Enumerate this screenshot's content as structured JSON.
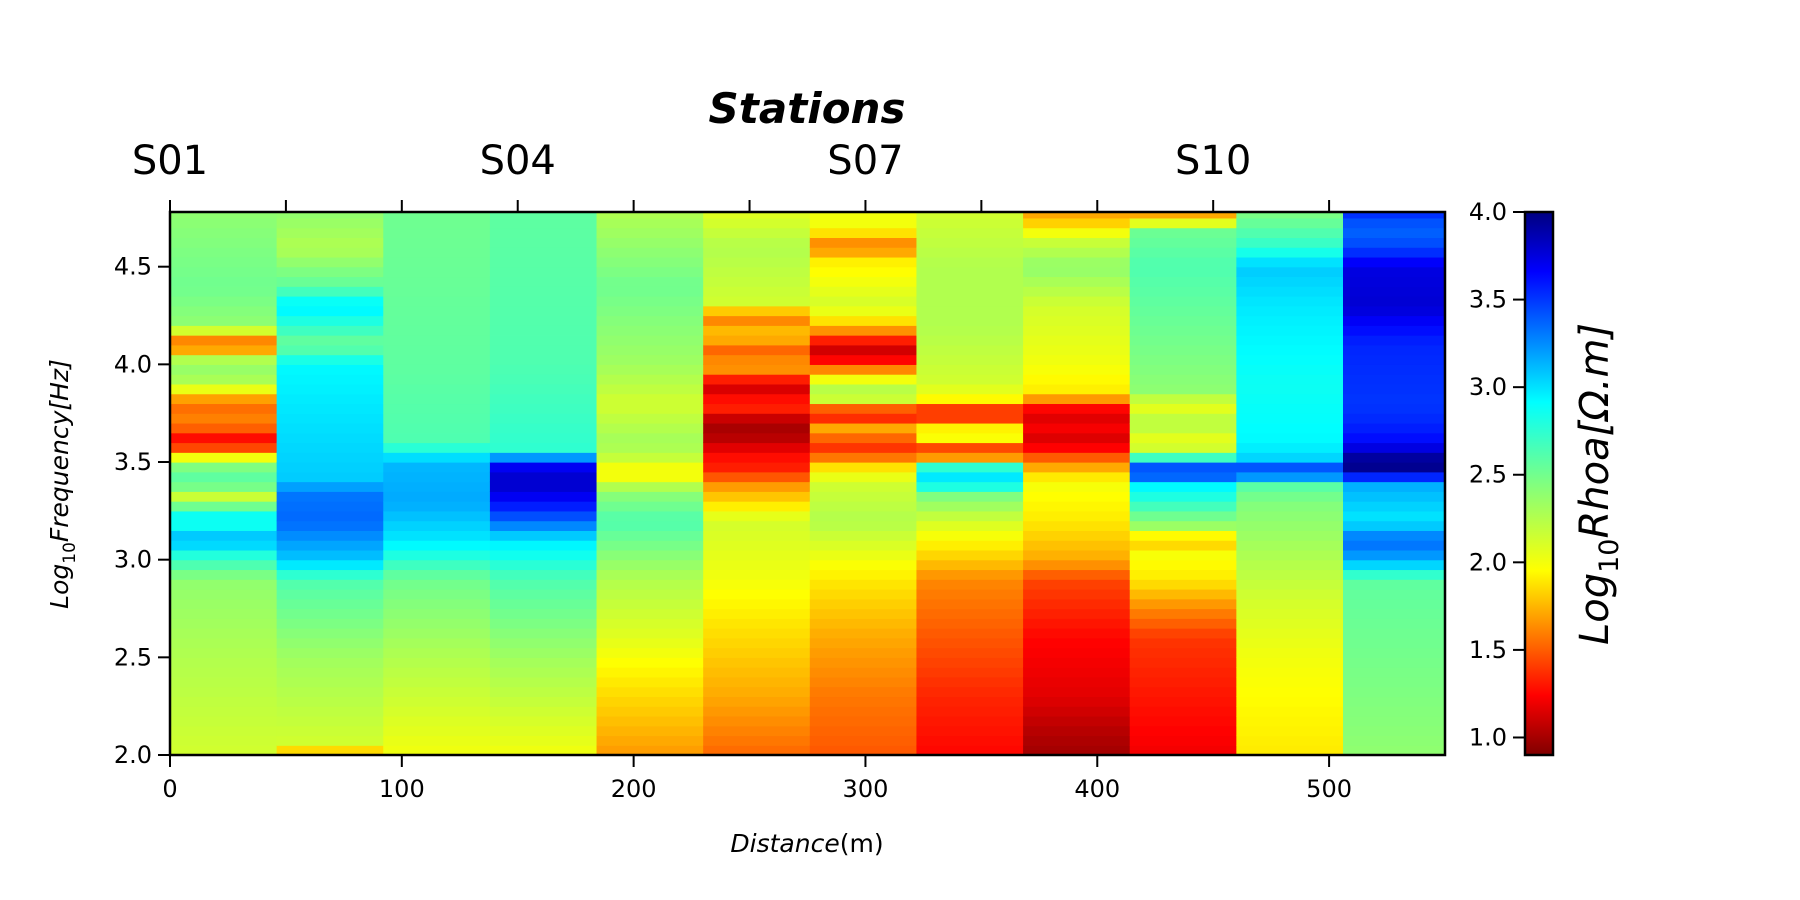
{
  "chart_data": {
    "type": "heatmap",
    "title": "Stations",
    "xlabel_base": "Distance",
    "xlabel_unit": "(m)",
    "ylabel_prefix": "Log",
    "ylabel_sub": "10",
    "ylabel_rest": "Frequency[Hz]",
    "colorbar_prefix": "Log",
    "colorbar_sub": "10",
    "colorbar_rest": "Rhoa[Ω.m]",
    "colormap": "jet",
    "color_range": [
      0.9,
      4.0
    ],
    "xlim": [
      0,
      550
    ],
    "ylim": [
      2.0,
      4.78
    ],
    "x_ticks": [
      0,
      100,
      200,
      300,
      400,
      500
    ],
    "y_ticks": [
      "2.0",
      "2.5",
      "3.0",
      "3.5",
      "4.0",
      "4.5"
    ],
    "colorbar_ticks": [
      "1.0",
      "1.5",
      "2.0",
      "2.5",
      "3.0",
      "3.5",
      "4.0"
    ],
    "station_ticks": [
      0,
      50,
      100,
      150,
      200,
      250,
      300,
      350,
      400,
      450,
      500
    ],
    "station_labels": [
      {
        "name": "S01",
        "x": 0
      },
      {
        "name": "S04",
        "x": 150
      },
      {
        "name": "S07",
        "x": 300
      },
      {
        "name": "S10",
        "x": 450
      }
    ],
    "columns": [
      {
        "x0": 0,
        "x1": 46,
        "profile": [
          [
            2.0,
            2.2
          ],
          [
            2.5,
            2.3
          ],
          [
            2.9,
            2.4
          ],
          [
            3.05,
            2.8
          ],
          [
            3.1,
            3.1
          ],
          [
            3.2,
            2.7
          ],
          [
            3.25,
            2.9
          ],
          [
            3.3,
            2.1
          ],
          [
            3.4,
            2.6
          ],
          [
            3.5,
            2.4
          ],
          [
            3.6,
            1.2
          ],
          [
            3.7,
            1.7
          ],
          [
            3.8,
            1.6
          ],
          [
            3.9,
            2.3
          ],
          [
            4.0,
            2.4
          ],
          [
            4.05,
            2.2
          ],
          [
            4.1,
            1.4
          ],
          [
            4.15,
            2.0
          ],
          [
            4.2,
            2.4
          ],
          [
            4.4,
            2.5
          ],
          [
            4.6,
            2.45
          ],
          [
            4.78,
            2.4
          ]
        ]
      },
      {
        "x0": 46,
        "x1": 92,
        "profile": [
          [
            2.0,
            1.7
          ],
          [
            2.05,
            2.2
          ],
          [
            2.5,
            2.35
          ],
          [
            2.9,
            2.6
          ],
          [
            3.0,
            3.0
          ],
          [
            3.2,
            3.3
          ],
          [
            3.35,
            3.25
          ],
          [
            3.4,
            3.0
          ],
          [
            3.6,
            2.95
          ],
          [
            3.8,
            2.9
          ],
          [
            4.0,
            2.85
          ],
          [
            4.1,
            2.5
          ],
          [
            4.2,
            2.7
          ],
          [
            4.3,
            2.9
          ],
          [
            4.4,
            2.55
          ],
          [
            4.6,
            2.3
          ],
          [
            4.78,
            2.4
          ]
        ]
      },
      {
        "x0": 92,
        "x1": 138,
        "profile": [
          [
            2.0,
            2.1
          ],
          [
            2.5,
            2.3
          ],
          [
            2.9,
            2.5
          ],
          [
            3.1,
            2.9
          ],
          [
            3.3,
            3.1
          ],
          [
            3.5,
            3.05
          ],
          [
            3.6,
            2.6
          ],
          [
            4.0,
            2.55
          ],
          [
            4.78,
            2.5
          ]
        ]
      },
      {
        "x0": 138,
        "x1": 184,
        "profile": [
          [
            2.0,
            2.1
          ],
          [
            2.5,
            2.35
          ],
          [
            2.9,
            2.6
          ],
          [
            3.1,
            2.9
          ],
          [
            3.2,
            3.3
          ],
          [
            3.3,
            3.6
          ],
          [
            3.4,
            3.8
          ],
          [
            3.5,
            3.6
          ],
          [
            3.55,
            2.7
          ],
          [
            4.0,
            2.6
          ],
          [
            4.78,
            2.55
          ]
        ]
      },
      {
        "x0": 184,
        "x1": 230,
        "profile": [
          [
            2.0,
            1.75
          ],
          [
            2.3,
            1.95
          ],
          [
            2.6,
            2.15
          ],
          [
            2.9,
            2.3
          ],
          [
            3.2,
            2.6
          ],
          [
            3.35,
            2.4
          ],
          [
            3.45,
            2.0
          ],
          [
            3.5,
            2.2
          ],
          [
            3.6,
            2.35
          ],
          [
            3.8,
            2.2
          ],
          [
            4.0,
            2.35
          ],
          [
            4.4,
            2.5
          ],
          [
            4.78,
            2.3
          ]
        ]
      },
      {
        "x0": 230,
        "x1": 276,
        "profile": [
          [
            2.0,
            1.6
          ],
          [
            2.3,
            1.8
          ],
          [
            2.6,
            1.95
          ],
          [
            2.9,
            2.1
          ],
          [
            3.2,
            2.2
          ],
          [
            3.4,
            1.7
          ],
          [
            3.45,
            1.4
          ],
          [
            3.55,
            1.3
          ],
          [
            3.6,
            1.1
          ],
          [
            3.7,
            1.0
          ],
          [
            3.8,
            1.5
          ],
          [
            3.85,
            1.15
          ],
          [
            3.9,
            1.2
          ],
          [
            4.0,
            1.9
          ],
          [
            4.05,
            1.5
          ],
          [
            4.1,
            1.7
          ],
          [
            4.15,
            1.9
          ],
          [
            4.2,
            1.8
          ],
          [
            4.25,
            1.6
          ],
          [
            4.3,
            2.2
          ],
          [
            4.6,
            2.3
          ],
          [
            4.78,
            2.15
          ]
        ]
      },
      {
        "x0": 276,
        "x1": 322,
        "profile": [
          [
            2.0,
            1.55
          ],
          [
            2.3,
            1.65
          ],
          [
            2.6,
            1.8
          ],
          [
            2.9,
            2.0
          ],
          [
            3.2,
            2.3
          ],
          [
            3.4,
            2.2
          ],
          [
            3.5,
            1.9
          ],
          [
            3.55,
            1.4
          ],
          [
            3.6,
            1.5
          ],
          [
            3.7,
            1.9
          ],
          [
            3.75,
            0.95
          ],
          [
            3.8,
            2.2
          ],
          [
            3.9,
            2.3
          ],
          [
            4.05,
            1.1
          ],
          [
            4.1,
            1.2
          ],
          [
            4.2,
            1.9
          ],
          [
            4.3,
            2.2
          ],
          [
            4.55,
            2.0
          ],
          [
            4.6,
            1.6
          ],
          [
            4.7,
            2.1
          ],
          [
            4.78,
            2.1
          ]
        ]
      },
      {
        "x0": 322,
        "x1": 368,
        "profile": [
          [
            2.0,
            1.3
          ],
          [
            2.3,
            1.4
          ],
          [
            2.6,
            1.55
          ],
          [
            2.9,
            1.7
          ],
          [
            3.0,
            1.9
          ],
          [
            3.2,
            2.2
          ],
          [
            3.35,
            2.5
          ],
          [
            3.4,
            3.0
          ],
          [
            3.5,
            2.6
          ],
          [
            3.55,
            0.92
          ],
          [
            3.6,
            2.1
          ],
          [
            3.7,
            2.0
          ],
          [
            3.75,
            0.95
          ],
          [
            3.8,
            2.0
          ],
          [
            3.9,
            2.2
          ],
          [
            4.2,
            2.3
          ],
          [
            4.5,
            2.3
          ],
          [
            4.78,
            2.2
          ]
        ]
      },
      {
        "x0": 368,
        "x1": 414,
        "profile": [
          [
            2.0,
            1.0
          ],
          [
            2.1,
            1.05
          ],
          [
            2.3,
            1.2
          ],
          [
            2.6,
            1.3
          ],
          [
            2.9,
            1.5
          ],
          [
            3.0,
            1.8
          ],
          [
            3.2,
            2.0
          ],
          [
            3.4,
            2.1
          ],
          [
            3.5,
            1.7
          ],
          [
            3.6,
            1.15
          ],
          [
            3.7,
            1.3
          ],
          [
            3.75,
            1.1
          ],
          [
            3.8,
            1.5
          ],
          [
            3.85,
            2.0
          ],
          [
            4.0,
            2.1
          ],
          [
            4.3,
            2.2
          ],
          [
            4.5,
            2.4
          ],
          [
            4.65,
            2.2
          ],
          [
            4.7,
            2.0
          ],
          [
            4.78,
            1.75
          ]
        ]
      },
      {
        "x0": 414,
        "x1": 460,
        "profile": [
          [
            2.0,
            1.25
          ],
          [
            2.3,
            1.35
          ],
          [
            2.6,
            1.45
          ],
          [
            2.75,
            1.7
          ],
          [
            2.9,
            2.0
          ],
          [
            3.05,
            2.1
          ],
          [
            3.1,
            1.8
          ],
          [
            3.15,
            2.3
          ],
          [
            3.3,
            2.7
          ],
          [
            3.4,
            2.9
          ],
          [
            3.45,
            3.7
          ],
          [
            3.5,
            3.0
          ],
          [
            3.55,
            2.3
          ],
          [
            3.6,
            2.1
          ],
          [
            3.7,
            2.3
          ],
          [
            3.8,
            2.1
          ],
          [
            3.85,
            2.4
          ],
          [
            4.0,
            2.45
          ],
          [
            4.5,
            2.6
          ],
          [
            4.7,
            2.5
          ],
          [
            4.75,
            1.8
          ],
          [
            4.78,
            1.8
          ]
        ]
      },
      {
        "x0": 460,
        "x1": 506,
        "profile": [
          [
            2.0,
            2.0
          ],
          [
            2.5,
            2.1
          ],
          [
            2.8,
            2.2
          ],
          [
            3.0,
            2.3
          ],
          [
            3.3,
            2.45
          ],
          [
            3.4,
            2.6
          ],
          [
            3.45,
            3.7
          ],
          [
            3.5,
            3.0
          ],
          [
            3.6,
            2.85
          ],
          [
            3.9,
            2.8
          ],
          [
            4.3,
            2.9
          ],
          [
            4.5,
            3.0
          ],
          [
            4.6,
            2.7
          ],
          [
            4.78,
            2.45
          ]
        ]
      },
      {
        "x0": 506,
        "x1": 552,
        "profile": [
          [
            2.0,
            2.4
          ],
          [
            2.9,
            2.55
          ],
          [
            3.0,
            3.1
          ],
          [
            3.1,
            3.3
          ],
          [
            3.2,
            2.9
          ],
          [
            3.3,
            3.0
          ],
          [
            3.4,
            3.1
          ],
          [
            3.45,
            3.9
          ],
          [
            3.5,
            4.0
          ],
          [
            3.6,
            3.6
          ],
          [
            3.7,
            3.5
          ],
          [
            3.8,
            3.45
          ],
          [
            4.1,
            3.5
          ],
          [
            4.2,
            3.6
          ],
          [
            4.3,
            3.75
          ],
          [
            4.5,
            3.7
          ],
          [
            4.6,
            3.4
          ],
          [
            4.7,
            3.3
          ],
          [
            4.78,
            3.5
          ]
        ]
      }
    ]
  }
}
